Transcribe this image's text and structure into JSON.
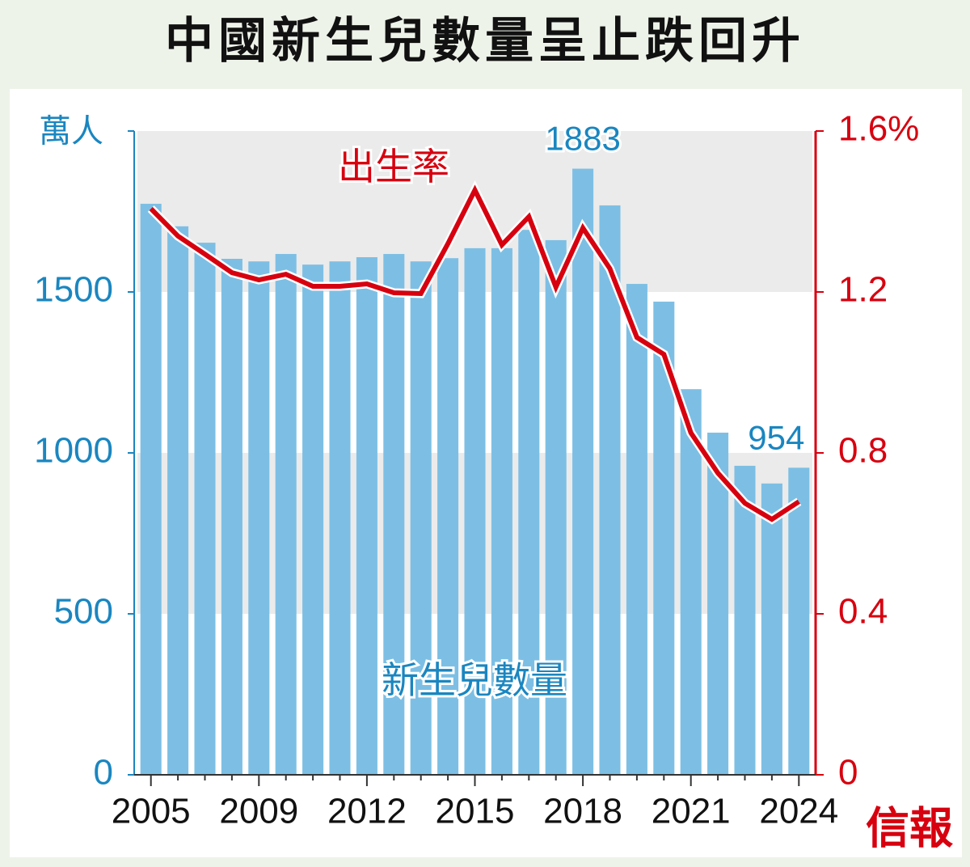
{
  "chart_data": {
    "type": "bar",
    "title": "中國新生兒數量呈止跌回升",
    "y_label": "萬人",
    "logo": "信報",
    "categories": [
      "2005",
      null,
      null,
      null,
      "2009",
      null,
      null,
      null,
      "2012",
      null,
      null,
      null,
      "2015",
      null,
      null,
      null,
      "2018",
      null,
      null,
      null,
      "2021",
      null,
      null,
      null,
      "2024"
    ],
    "series": [
      {
        "name": "新生兒數量",
        "type": "bar",
        "axis": "y",
        "color": "#7dbfe4",
        "values": [
          1774,
          1704,
          1653,
          1603,
          1595,
          1618,
          1585,
          1595,
          1608,
          1618,
          1595,
          1605,
          1636,
          1636,
          1693,
          1661,
          1883,
          1769,
          1525,
          1470,
          1198,
          1063,
          960,
          905,
          954
        ],
        "value_labels": [
          null,
          null,
          null,
          null,
          null,
          null,
          null,
          null,
          null,
          null,
          null,
          null,
          null,
          null,
          null,
          null,
          "1883",
          null,
          null,
          null,
          null,
          null,
          null,
          null,
          "954"
        ]
      },
      {
        "name": "出生率",
        "type": "line",
        "axis": "y2",
        "color": "#d7000f",
        "values": [
          1.407,
          1.339,
          1.294,
          1.248,
          1.23,
          1.244,
          1.214,
          1.214,
          1.22,
          1.198,
          1.196,
          1.32,
          1.453,
          1.317,
          1.387,
          1.212,
          1.359,
          1.258,
          1.087,
          1.045,
          0.85,
          0.75,
          0.675,
          0.635,
          0.679
        ]
      }
    ],
    "ylim": [
      0,
      2000
    ],
    "yticks": [
      0,
      500,
      1000,
      1500
    ],
    "y2lim": [
      0,
      1.6
    ],
    "y2ticks": [
      0,
      0.4,
      0.8,
      1.2,
      {
        "value": 1.6,
        "label": "1.6%"
      }
    ],
    "left_axis_color": "#1a86c0",
    "right_axis_color": "#d7000f"
  }
}
